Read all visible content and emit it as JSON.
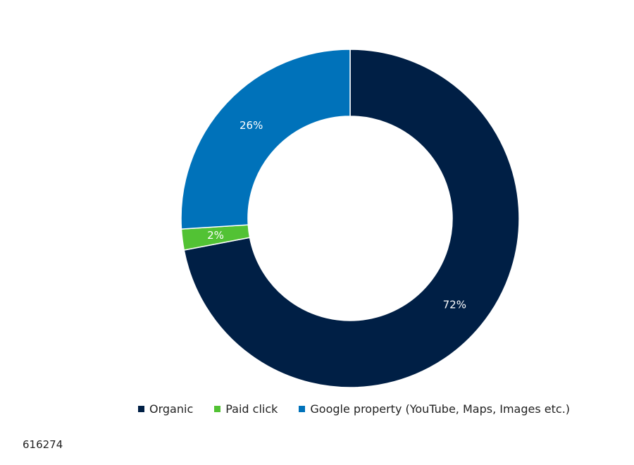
{
  "chart_data": {
    "type": "pie",
    "donut": true,
    "categories": [
      "Organic",
      "Paid click",
      "Google property (YouTube, Maps, Images etc.)"
    ],
    "values": [
      72,
      2,
      26
    ],
    "value_labels": [
      "72%",
      "2%",
      "26%"
    ],
    "colors": [
      "#001f45",
      "#52c234",
      "#0072ba"
    ],
    "legend_position": "bottom"
  },
  "chart_id": "616274"
}
